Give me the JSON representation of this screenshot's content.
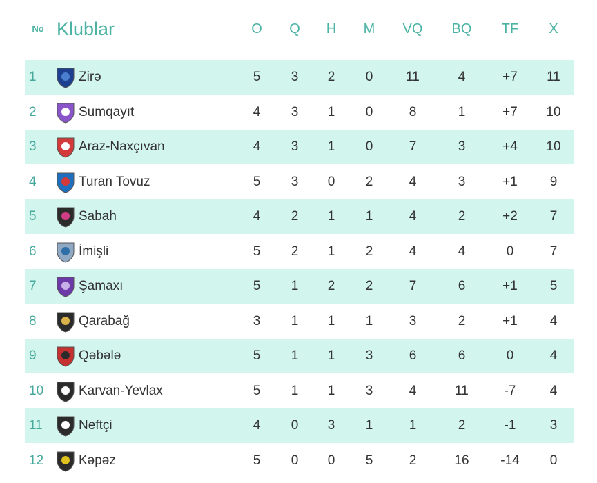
{
  "header": {
    "no": "No",
    "club": "Klublar",
    "columns": [
      "O",
      "Q",
      "H",
      "M",
      "VQ",
      "BQ",
      "TF",
      "X"
    ]
  },
  "colors": {
    "accent": "#4bb3a4",
    "row_alt": "#d2f5ee"
  },
  "teams": [
    {
      "pos": "1",
      "name": "Zirə",
      "icon": "zire-crest-icon",
      "stats": [
        "5",
        "3",
        "2",
        "0",
        "11",
        "4",
        "+7",
        "11"
      ]
    },
    {
      "pos": "2",
      "name": "Sumqayıt",
      "icon": "sumqayit-crest-icon",
      "stats": [
        "4",
        "3",
        "1",
        "0",
        "8",
        "1",
        "+7",
        "10"
      ]
    },
    {
      "pos": "3",
      "name": "Araz-Naxçıvan",
      "icon": "araz-naxcivan-crest-icon",
      "stats": [
        "4",
        "3",
        "1",
        "0",
        "7",
        "3",
        "+4",
        "10"
      ]
    },
    {
      "pos": "4",
      "name": "Turan Tovuz",
      "icon": "turan-tovuz-crest-icon",
      "stats": [
        "5",
        "3",
        "0",
        "2",
        "4",
        "3",
        "+1",
        "9"
      ]
    },
    {
      "pos": "5",
      "name": "Sabah",
      "icon": "sabah-crest-icon",
      "stats": [
        "4",
        "2",
        "1",
        "1",
        "4",
        "2",
        "+2",
        "7"
      ]
    },
    {
      "pos": "6",
      "name": "İmişli",
      "icon": "imisli-crest-icon",
      "stats": [
        "5",
        "2",
        "1",
        "2",
        "4",
        "4",
        "0",
        "7"
      ]
    },
    {
      "pos": "7",
      "name": "Şamaxı",
      "icon": "samaxi-crest-icon",
      "stats": [
        "5",
        "1",
        "2",
        "2",
        "7",
        "6",
        "+1",
        "5"
      ]
    },
    {
      "pos": "8",
      "name": "Qarabağ",
      "icon": "qarabag-crest-icon",
      "stats": [
        "3",
        "1",
        "1",
        "1",
        "3",
        "2",
        "+1",
        "4"
      ]
    },
    {
      "pos": "9",
      "name": "Qəbələ",
      "icon": "qebele-crest-icon",
      "stats": [
        "5",
        "1",
        "1",
        "3",
        "6",
        "6",
        "0",
        "4"
      ]
    },
    {
      "pos": "10",
      "name": "Karvan-Yevlax",
      "icon": "karvan-yevlax-crest-icon",
      "stats": [
        "5",
        "1",
        "1",
        "3",
        "4",
        "11",
        "-7",
        "4"
      ]
    },
    {
      "pos": "11",
      "name": "Neftçi",
      "icon": "neftci-crest-icon",
      "stats": [
        "4",
        "0",
        "3",
        "1",
        "1",
        "2",
        "-1",
        "3"
      ]
    },
    {
      "pos": "12",
      "name": "Kəpəz",
      "icon": "kepez-crest-icon",
      "stats": [
        "5",
        "0",
        "0",
        "5",
        "2",
        "16",
        "-14",
        "0"
      ]
    }
  ]
}
